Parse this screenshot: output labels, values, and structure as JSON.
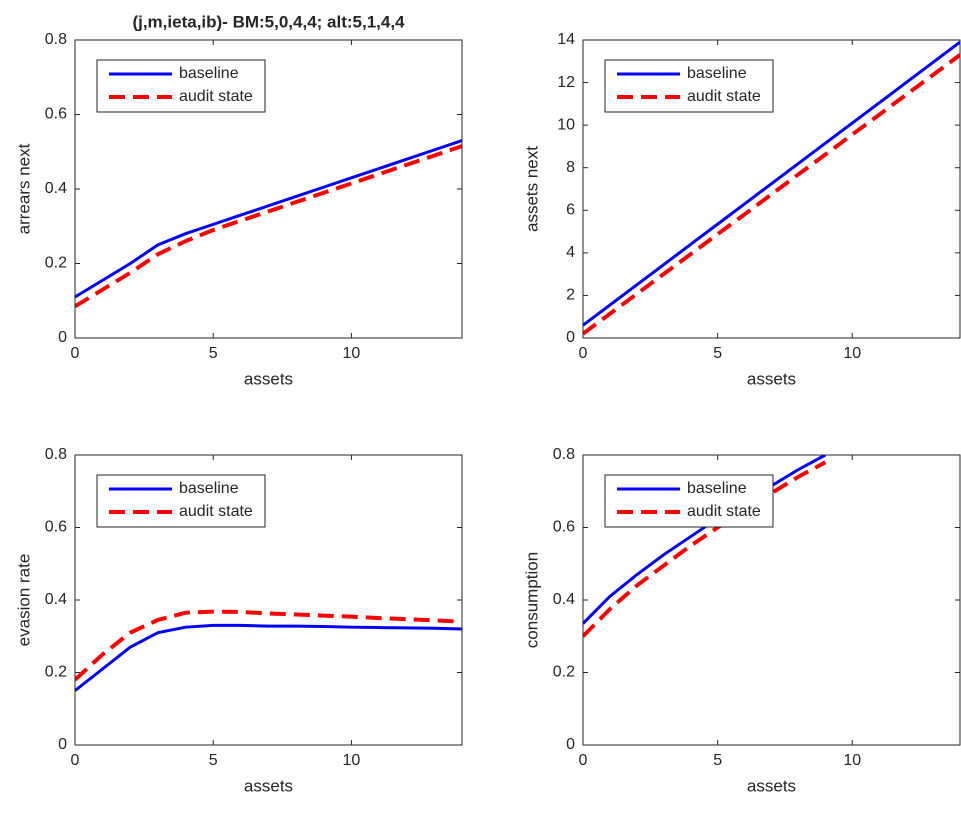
{
  "chart_data": [
    {
      "type": "line",
      "title": "(j,m,ieta,ib)- BM:5,0,4,4; alt:5,1,4,4",
      "x_label": "assets",
      "y_label": "arrears next",
      "x": [
        0,
        1,
        2,
        3,
        4,
        5,
        6,
        7,
        8,
        9,
        10,
        11,
        12,
        13,
        14
      ],
      "series": [
        {
          "name": "baseline",
          "color": "#0000ff",
          "style": "solid",
          "values": [
            0.11,
            0.155,
            0.2,
            0.25,
            0.28,
            0.305,
            0.33,
            0.355,
            0.38,
            0.405,
            0.43,
            0.455,
            0.48,
            0.505,
            0.53
          ]
        },
        {
          "name": "audit state",
          "color": "#ff0000",
          "style": "dashed",
          "values": [
            0.085,
            0.13,
            0.175,
            0.225,
            0.26,
            0.29,
            0.315,
            0.34,
            0.365,
            0.39,
            0.415,
            0.44,
            0.465,
            0.49,
            0.515
          ]
        }
      ],
      "xlim": [
        0,
        14
      ],
      "xticks": [
        0,
        5,
        10
      ],
      "ylim": [
        0,
        0.8
      ],
      "yticks": [
        0,
        0.2,
        0.4,
        0.6,
        0.8
      ],
      "legend": "upper left"
    },
    {
      "type": "line",
      "x_label": "assets",
      "y_label": "assets next",
      "x": [
        0,
        1,
        2,
        3,
        4,
        5,
        6,
        7,
        8,
        9,
        10,
        11,
        12,
        13,
        14
      ],
      "series": [
        {
          "name": "baseline",
          "color": "#0000ff",
          "style": "solid",
          "values": [
            0.6,
            1.55,
            2.5,
            3.45,
            4.4,
            5.35,
            6.3,
            7.25,
            8.2,
            9.15,
            10.1,
            11.05,
            12,
            12.95,
            13.9
          ]
        },
        {
          "name": "audit state",
          "color": "#ff0000",
          "style": "dashed",
          "values": [
            0.2,
            1.14,
            2.07,
            3.01,
            3.94,
            4.88,
            5.81,
            6.75,
            7.69,
            8.62,
            9.56,
            10.49,
            11.43,
            12.36,
            13.3
          ]
        }
      ],
      "xlim": [
        0,
        14
      ],
      "xticks": [
        0,
        5,
        10
      ],
      "ylim": [
        0,
        14
      ],
      "yticks": [
        0,
        2,
        4,
        6,
        8,
        10,
        12,
        14
      ],
      "legend": "upper left"
    },
    {
      "type": "line",
      "x_label": "assets",
      "y_label": "evasion rate",
      "x": [
        0,
        1,
        2,
        3,
        4,
        5,
        6,
        7,
        8,
        9,
        10,
        11,
        12,
        13,
        14
      ],
      "series": [
        {
          "name": "baseline",
          "color": "#0000ff",
          "style": "solid",
          "values": [
            0.15,
            0.21,
            0.27,
            0.31,
            0.325,
            0.33,
            0.33,
            0.328,
            0.328,
            0.327,
            0.325,
            0.324,
            0.323,
            0.322,
            0.32
          ]
        },
        {
          "name": "audit state",
          "color": "#ff0000",
          "style": "dashed",
          "values": [
            0.18,
            0.25,
            0.31,
            0.345,
            0.365,
            0.368,
            0.367,
            0.363,
            0.36,
            0.357,
            0.354,
            0.35,
            0.347,
            0.344,
            0.34
          ]
        }
      ],
      "xlim": [
        0,
        14
      ],
      "xticks": [
        0,
        5,
        10
      ],
      "ylim": [
        0,
        0.8
      ],
      "yticks": [
        0,
        0.2,
        0.4,
        0.6,
        0.8
      ],
      "legend": "upper left"
    },
    {
      "type": "line",
      "x_label": "assets",
      "y_label": "consumption",
      "x": [
        0,
        1,
        2,
        3,
        4,
        5,
        6,
        7,
        8,
        9
      ],
      "series": [
        {
          "name": "baseline",
          "color": "#0000ff",
          "style": "solid",
          "values": [
            0.335,
            0.41,
            0.47,
            0.525,
            0.575,
            0.625,
            0.67,
            0.715,
            0.76,
            0.8
          ]
        },
        {
          "name": "audit state",
          "color": "#ff0000",
          "style": "dashed",
          "values": [
            0.3,
            0.375,
            0.44,
            0.495,
            0.55,
            0.6,
            0.645,
            0.695,
            0.74,
            0.78
          ]
        }
      ],
      "xlim": [
        0,
        14
      ],
      "xticks": [
        0,
        5,
        10
      ],
      "ylim": [
        0,
        0.8
      ],
      "yticks": [
        0,
        0.2,
        0.4,
        0.6,
        0.8
      ],
      "legend": "upper left"
    }
  ]
}
